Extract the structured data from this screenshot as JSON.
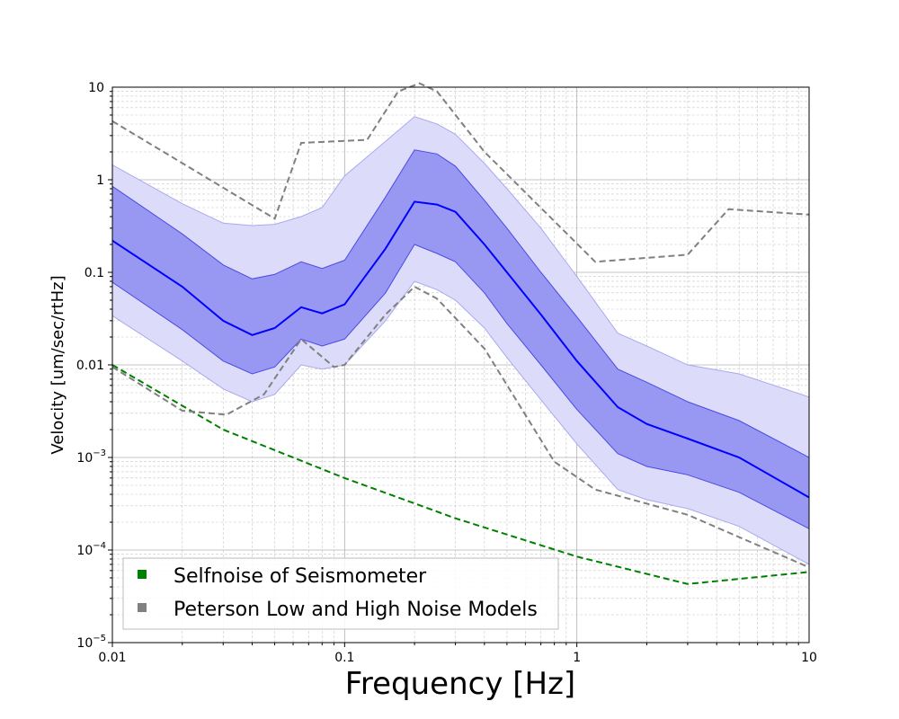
{
  "chart_data": {
    "type": "area",
    "title": "",
    "xlabel": "Frequency [Hz]",
    "ylabel": "Velocity [um/sec/rtHz]",
    "x_scale": "log",
    "y_scale": "log",
    "xlim": [
      0.01,
      10
    ],
    "ylim": [
      1e-05,
      10
    ],
    "grid": true,
    "legend_position": "lower-left",
    "x_ticks": [
      {
        "value": 0.01,
        "label": "0.01"
      },
      {
        "value": 0.1,
        "label": "0.1"
      },
      {
        "value": 1,
        "label": "1"
      },
      {
        "value": 10,
        "label": "10"
      }
    ],
    "y_ticks": [
      {
        "value": 1e-05,
        "label": "10",
        "exp": "−5"
      },
      {
        "value": 0.0001,
        "label": "10",
        "exp": "−4"
      },
      {
        "value": 0.001,
        "label": "10",
        "exp": "−3"
      },
      {
        "value": 0.01,
        "label": "0.01",
        "exp": ""
      },
      {
        "value": 0.1,
        "label": "0.1",
        "exp": ""
      },
      {
        "value": 1,
        "label": "1",
        "exp": ""
      },
      {
        "value": 10,
        "label": "10",
        "exp": ""
      }
    ],
    "colors": {
      "median": "#0000ff",
      "inner_band": "#8c8cf0",
      "outer_band": "#dcdcfa",
      "selfnoise": "#008000",
      "peterson": "#808080"
    },
    "series": [
      {
        "name": "Selfnoise of Seismometer",
        "style": "dashed",
        "color": "#008000",
        "x": [
          0.01,
          0.03,
          0.1,
          0.3,
          1,
          3,
          10
        ],
        "y": [
          0.01,
          0.002,
          0.0006,
          0.00022,
          8.5e-05,
          4.3e-05,
          5.8e-05
        ]
      },
      {
        "name": "Peterson Low and High Noise Models",
        "style": "dashed",
        "color": "#808080",
        "x": [
          0.01,
          0.05,
          0.065,
          0.125,
          0.17,
          0.21,
          0.25,
          0.4,
          1.2,
          3,
          4.5,
          10
        ],
        "y": [
          4.3,
          0.38,
          2.5,
          2.7,
          9,
          11,
          9,
          2,
          0.13,
          0.155,
          0.48,
          0.42
        ]
      },
      {
        "style": "dashed",
        "color": "#808080",
        "x": [
          0.01,
          0.02,
          0.031,
          0.045,
          0.065,
          0.09,
          0.1,
          0.15,
          0.2,
          0.25,
          0.4,
          0.8,
          1.2,
          3,
          10
        ],
        "y": [
          0.0095,
          0.0032,
          0.0029,
          0.0048,
          0.019,
          0.0095,
          0.01,
          0.035,
          0.07,
          0.052,
          0.015,
          0.0009,
          0.00045,
          0.00024,
          6.5e-05
        ]
      },
      {
        "name": "median",
        "style": "solid",
        "color": "#0000ff",
        "x": [
          0.01,
          0.02,
          0.03,
          0.04,
          0.05,
          0.065,
          0.08,
          0.1,
          0.15,
          0.2,
          0.25,
          0.3,
          0.4,
          0.5,
          0.7,
          1,
          1.5,
          2,
          3,
          5,
          10
        ],
        "y": [
          0.22,
          0.07,
          0.03,
          0.021,
          0.025,
          0.042,
          0.036,
          0.045,
          0.18,
          0.58,
          0.54,
          0.45,
          0.2,
          0.1,
          0.035,
          0.011,
          0.0035,
          0.0023,
          0.0016,
          0.001,
          0.00037
        ]
      },
      {
        "name": "inner-band",
        "x": [
          0.01,
          0.02,
          0.03,
          0.04,
          0.05,
          0.065,
          0.08,
          0.1,
          0.15,
          0.2,
          0.25,
          0.3,
          0.4,
          0.5,
          0.7,
          1,
          1.5,
          2,
          3,
          5,
          10
        ],
        "lower": [
          0.078,
          0.024,
          0.011,
          0.008,
          0.0095,
          0.019,
          0.016,
          0.019,
          0.06,
          0.2,
          0.16,
          0.13,
          0.06,
          0.028,
          0.01,
          0.0033,
          0.0011,
          0.0008,
          0.00065,
          0.00042,
          0.00017
        ],
        "upper": [
          0.85,
          0.26,
          0.12,
          0.085,
          0.095,
          0.13,
          0.11,
          0.135,
          0.65,
          2.1,
          1.9,
          1.4,
          0.6,
          0.3,
          0.1,
          0.033,
          0.009,
          0.0065,
          0.004,
          0.0025,
          0.001
        ]
      },
      {
        "name": "outer-band",
        "x": [
          0.01,
          0.02,
          0.03,
          0.04,
          0.05,
          0.065,
          0.08,
          0.1,
          0.15,
          0.2,
          0.25,
          0.3,
          0.4,
          0.5,
          0.7,
          1,
          1.5,
          2,
          3,
          5,
          10
        ],
        "lower": [
          0.034,
          0.011,
          0.0055,
          0.004,
          0.0048,
          0.01,
          0.009,
          0.01,
          0.03,
          0.08,
          0.065,
          0.05,
          0.025,
          0.012,
          0.0042,
          0.0014,
          0.00045,
          0.00035,
          0.00028,
          0.00018,
          7e-05
        ],
        "upper": [
          1.45,
          0.55,
          0.34,
          0.32,
          0.33,
          0.4,
          0.5,
          1.1,
          2.6,
          4.8,
          4,
          3.1,
          1.5,
          0.8,
          0.3,
          0.09,
          0.022,
          0.016,
          0.01,
          0.008,
          0.0045
        ]
      }
    ],
    "legend": [
      {
        "label": "Selfnoise of Seismometer",
        "color": "#008000"
      },
      {
        "label": "Peterson Low and High Noise Models",
        "color": "#808080"
      }
    ]
  }
}
